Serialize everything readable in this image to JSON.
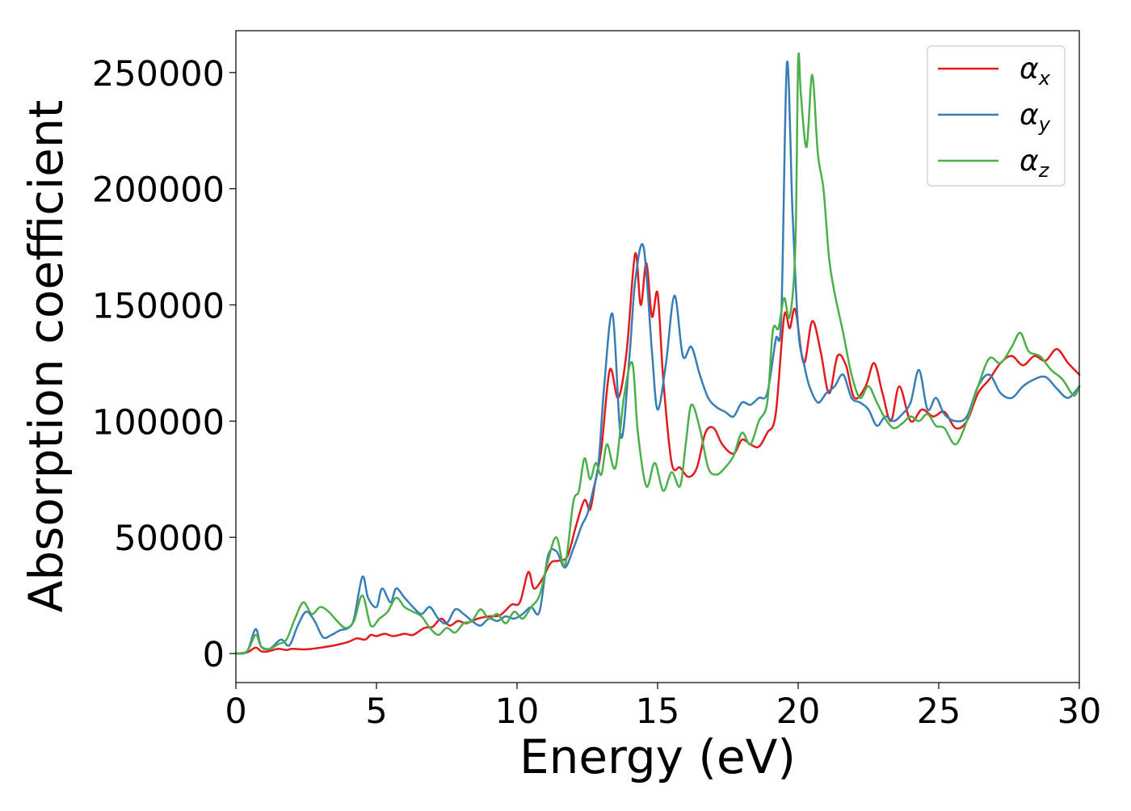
{
  "chart_data": {
    "type": "line",
    "title": "",
    "xlabel": "Energy (eV)",
    "ylabel": "Absorption coefficient",
    "xlim": [
      0,
      30
    ],
    "ylim": [
      -12500,
      268000
    ],
    "xticks": [
      0,
      5,
      10,
      15,
      20,
      25,
      30
    ],
    "yticks": [
      0,
      50000,
      100000,
      150000,
      200000,
      250000
    ],
    "grid": false,
    "legend_position": "top-right",
    "series": [
      {
        "name": "α_x",
        "legend_base": "α",
        "legend_sub": "x",
        "color": "#e41a1c",
        "x": [
          0,
          0.4,
          0.7,
          0.9,
          1.1,
          1.5,
          1.8,
          2.0,
          2.5,
          3.0,
          3.5,
          4.0,
          4.3,
          4.6,
          4.8,
          5.0,
          5.3,
          5.6,
          6.0,
          6.3,
          6.7,
          7.0,
          7.3,
          7.6,
          7.9,
          8.2,
          8.6,
          9.0,
          9.4,
          9.8,
          10.1,
          10.4,
          10.6,
          10.9,
          11.2,
          11.5,
          11.8,
          12.1,
          12.4,
          12.6,
          12.8,
          13.0,
          13.3,
          13.6,
          13.9,
          14.2,
          14.4,
          14.6,
          14.8,
          15.0,
          15.2,
          15.5,
          15.8,
          16.1,
          16.4,
          16.7,
          17.0,
          17.3,
          17.7,
          18.0,
          18.3,
          18.6,
          18.9,
          19.2,
          19.5,
          19.7,
          19.9,
          20.2,
          20.5,
          20.8,
          21.1,
          21.4,
          21.7,
          22.0,
          22.4,
          22.7,
          23.0,
          23.3,
          23.6,
          24.0,
          24.4,
          24.8,
          25.2,
          25.6,
          26.0,
          26.4,
          26.8,
          27.2,
          27.6,
          28.0,
          28.4,
          28.8,
          29.2,
          29.6,
          30.0
        ],
        "values": [
          0,
          500,
          2500,
          1000,
          800,
          2000,
          1500,
          2000,
          1800,
          2500,
          3500,
          5000,
          6500,
          6000,
          8000,
          7500,
          8500,
          7500,
          8500,
          8000,
          11000,
          11500,
          15000,
          12000,
          14000,
          13000,
          15000,
          16000,
          16500,
          21000,
          22000,
          35000,
          28000,
          32000,
          39000,
          40000,
          42000,
          55000,
          66000,
          62000,
          75000,
          88000,
          122000,
          110000,
          130000,
          172000,
          150000,
          168000,
          145000,
          155000,
          118000,
          82000,
          80000,
          76000,
          80000,
          95000,
          97000,
          90000,
          86000,
          92000,
          90000,
          89000,
          95000,
          103000,
          145000,
          140000,
          148000,
          125000,
          143000,
          130000,
          112000,
          128000,
          124000,
          110000,
          115000,
          125000,
          112000,
          100000,
          115000,
          100000,
          105000,
          102000,
          104000,
          97000,
          100000,
          112000,
          118000,
          125000,
          128000,
          124000,
          128000,
          126000,
          131000,
          125000,
          120000
        ]
      },
      {
        "name": "α_y",
        "legend_base": "α",
        "legend_sub": "y",
        "color": "#377eb8",
        "x": [
          0,
          0.4,
          0.7,
          0.9,
          1.2,
          1.6,
          1.9,
          2.2,
          2.5,
          2.8,
          3.1,
          3.4,
          3.7,
          4.0,
          4.2,
          4.5,
          4.7,
          5.0,
          5.2,
          5.5,
          5.7,
          6.0,
          6.3,
          6.6,
          6.9,
          7.2,
          7.5,
          7.8,
          8.1,
          8.4,
          8.7,
          9.0,
          9.3,
          9.6,
          9.9,
          10.2,
          10.5,
          10.8,
          11.1,
          11.4,
          11.7,
          12.0,
          12.3,
          12.5,
          12.7,
          12.9,
          13.1,
          13.4,
          13.7,
          14.0,
          14.2,
          14.5,
          14.8,
          15.0,
          15.3,
          15.6,
          15.9,
          16.2,
          16.5,
          16.8,
          17.1,
          17.4,
          17.7,
          18.0,
          18.3,
          18.6,
          18.9,
          19.2,
          19.4,
          19.6,
          19.8,
          20.0,
          20.2,
          20.4,
          20.7,
          21.0,
          21.3,
          21.6,
          21.9,
          22.2,
          22.5,
          22.8,
          23.1,
          23.4,
          23.7,
          24.0,
          24.3,
          24.6,
          24.9,
          25.2,
          25.6,
          26.0,
          26.4,
          26.8,
          27.2,
          27.6,
          28.0,
          28.4,
          28.8,
          29.2,
          29.6,
          30.0
        ],
        "values": [
          0,
          1000,
          10500,
          3000,
          2000,
          6000,
          3500,
          12000,
          18000,
          14000,
          7000,
          8000,
          10000,
          11000,
          15000,
          33000,
          24000,
          20000,
          28000,
          22000,
          28000,
          24000,
          20000,
          17000,
          20000,
          15000,
          13000,
          19000,
          17000,
          14000,
          12000,
          15000,
          14000,
          16000,
          15000,
          17000,
          20000,
          18000,
          42000,
          44000,
          37000,
          45000,
          55000,
          60000,
          70000,
          82000,
          115000,
          146000,
          93000,
          128000,
          160000,
          175000,
          130000,
          105000,
          125000,
          154000,
          128000,
          132000,
          120000,
          110000,
          106000,
          104000,
          102000,
          108000,
          107000,
          110000,
          112000,
          135000,
          145000,
          254000,
          190000,
          140000,
          125000,
          115000,
          108000,
          112000,
          115000,
          120000,
          110000,
          108000,
          105000,
          98000,
          102000,
          100000,
          103000,
          108000,
          122000,
          105000,
          110000,
          103000,
          100000,
          102000,
          115000,
          120000,
          112000,
          110000,
          115000,
          118000,
          119000,
          114000,
          110000,
          115000
        ]
      },
      {
        "name": "α_z",
        "legend_base": "α",
        "legend_sub": "z",
        "color": "#4daf4a",
        "x": [
          0,
          0.4,
          0.7,
          0.9,
          1.2,
          1.5,
          1.8,
          2.1,
          2.4,
          2.7,
          3.0,
          3.3,
          3.6,
          3.9,
          4.2,
          4.5,
          4.8,
          5.1,
          5.4,
          5.7,
          6.0,
          6.3,
          6.6,
          6.9,
          7.2,
          7.5,
          7.8,
          8.1,
          8.4,
          8.7,
          9.0,
          9.3,
          9.6,
          9.9,
          10.2,
          10.5,
          10.8,
          11.1,
          11.4,
          11.7,
          12.0,
          12.2,
          12.4,
          12.6,
          12.8,
          13.0,
          13.2,
          13.5,
          13.8,
          14.1,
          14.3,
          14.6,
          14.9,
          15.2,
          15.5,
          15.8,
          16.0,
          16.2,
          16.5,
          16.8,
          17.1,
          17.4,
          17.7,
          18.0,
          18.3,
          18.6,
          18.9,
          19.1,
          19.3,
          19.5,
          19.7,
          19.9,
          20.0,
          20.1,
          20.3,
          20.5,
          20.7,
          20.9,
          21.1,
          21.3,
          21.6,
          21.9,
          22.2,
          22.5,
          22.8,
          23.1,
          23.4,
          23.7,
          24.0,
          24.3,
          24.6,
          24.9,
          25.2,
          25.6,
          26.0,
          26.4,
          26.8,
          27.2,
          27.6,
          27.9,
          28.2,
          28.6,
          29.0,
          29.4,
          29.8,
          30.0
        ],
        "values": [
          0,
          1000,
          8000,
          3000,
          2000,
          4000,
          6000,
          15000,
          22000,
          17000,
          20000,
          18000,
          14000,
          11000,
          14000,
          25000,
          12000,
          15000,
          18000,
          24000,
          20000,
          18000,
          16000,
          11000,
          8000,
          11000,
          9000,
          13000,
          14000,
          19000,
          15000,
          17000,
          13000,
          18000,
          15000,
          20000,
          25000,
          40000,
          50000,
          38000,
          65000,
          70000,
          84000,
          75000,
          82000,
          77000,
          90000,
          80000,
          110000,
          125000,
          95000,
          72000,
          82000,
          70000,
          78000,
          72000,
          90000,
          107000,
          97000,
          80000,
          77000,
          80000,
          85000,
          95000,
          90000,
          100000,
          108000,
          139000,
          140000,
          153000,
          145000,
          175000,
          255000,
          240000,
          218000,
          249000,
          215000,
          200000,
          170000,
          155000,
          138000,
          120000,
          110000,
          115000,
          108000,
          101000,
          97000,
          99000,
          102000,
          100000,
          103000,
          98000,
          97000,
          90000,
          100000,
          115000,
          127000,
          125000,
          132000,
          138000,
          130000,
          128000,
          122000,
          118000,
          111000,
          115000
        ]
      }
    ]
  }
}
